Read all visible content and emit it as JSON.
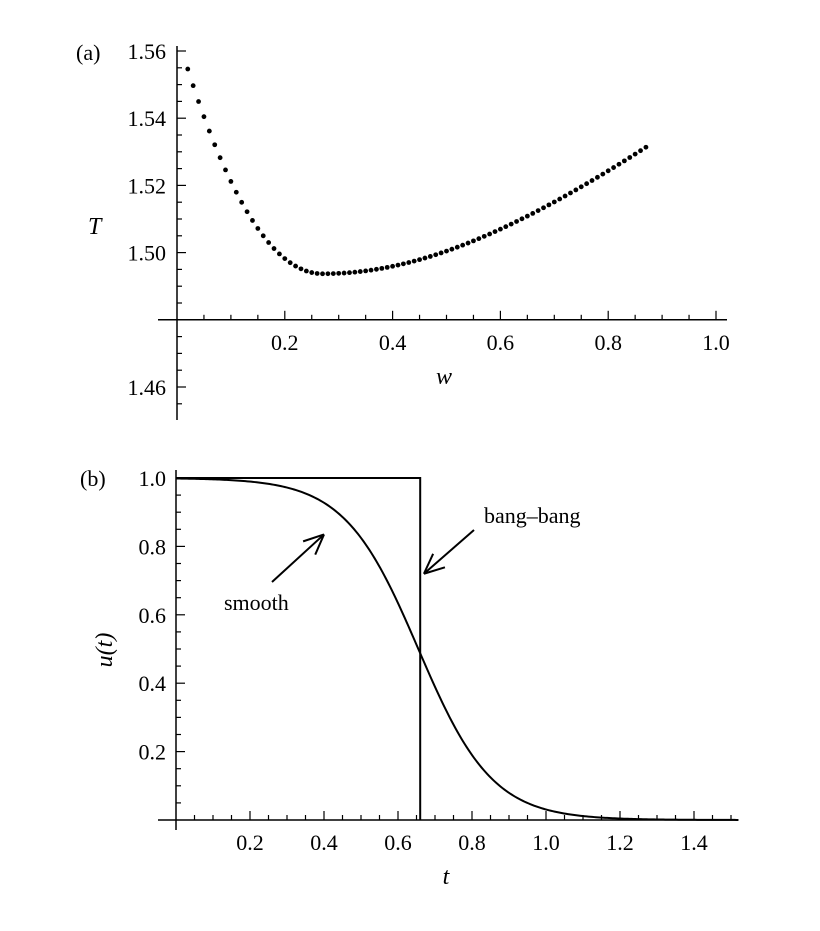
{
  "chart_data": [
    {
      "panel": "(a)",
      "type": "scatter",
      "xlabel": "w",
      "ylabel": "T",
      "xlim": [
        0,
        1.0
      ],
      "ylim": [
        1.46,
        1.56
      ],
      "x_axis_crosses_y_at": 1.48,
      "xticks": [
        "0.2",
        "0.4",
        "0.6",
        "0.8",
        "1.0"
      ],
      "yticks": [
        "1.46",
        "1.50",
        "1.52",
        "1.54",
        "1.56"
      ],
      "grid": false,
      "curve_model": {
        "w_min": 0.27,
        "T_min": 1.4937,
        "left_a": 0.9,
        "left_b": 0.3,
        "right_a": 0.067,
        "right_b": 2.0,
        "right_c": 0.5
      },
      "series": [
        {
          "x_range": [
            0.02,
            0.87
          ],
          "x_step": 0.01
        }
      ]
    },
    {
      "panel": "(b)",
      "type": "line",
      "xlabel": "t",
      "ylabel": "u(t)",
      "xlim": [
        0,
        1.52
      ],
      "ylim": [
        0,
        1.0
      ],
      "xticks": [
        "0.2",
        "0.4",
        "0.6",
        "0.8",
        "1.0",
        "1.2",
        "1.4"
      ],
      "yticks": [
        "0.2",
        "0.4",
        "0.6",
        "0.8",
        "1.0"
      ],
      "grid": false,
      "series": [
        {
          "name": "smooth",
          "kind": "logistic",
          "midpoint": 0.655,
          "scale": 0.1,
          "x_range": [
            0,
            1.52
          ]
        },
        {
          "name": "bang–bang",
          "kind": "step",
          "switch_t": 0.66,
          "high": 1.0,
          "low": 0.0,
          "x_range": [
            0,
            0.66
          ]
        }
      ],
      "annotations": [
        {
          "text": "smooth",
          "points_to": [
            0.4,
            0.835
          ]
        },
        {
          "text": "bang–bang",
          "points_to": [
            0.67,
            0.72
          ]
        }
      ]
    }
  ]
}
